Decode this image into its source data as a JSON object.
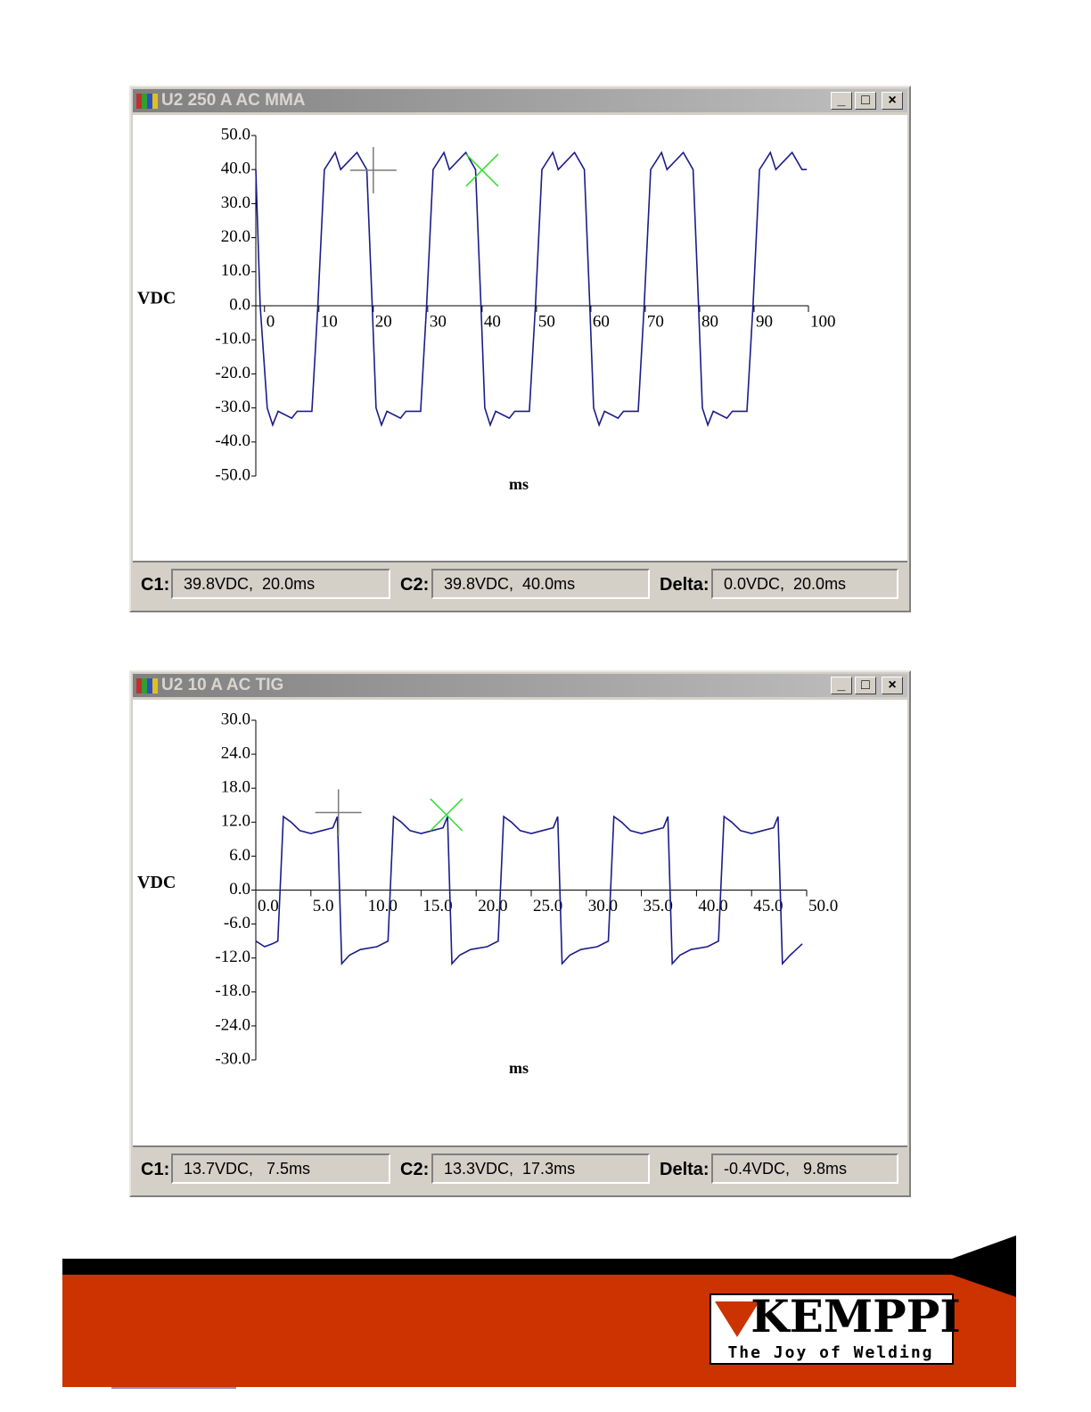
{
  "windows": [
    {
      "title": "U2 250 A AC MMA",
      "status": [
        {
          "label": "C1:",
          "text": "39.8VDC,  20.0ms"
        },
        {
          "label": "C2:",
          "text": "39.8VDC,  40.0ms"
        },
        {
          "label": "Delta:",
          "text": "0.0VDC,  20.0ms"
        }
      ]
    },
    {
      "title": "U2 10 A AC TIG",
      "status": [
        {
          "label": "C1:",
          "text": "13.7VDC,   7.5ms"
        },
        {
          "label": "C2:",
          "text": "13.3VDC,  17.3ms"
        },
        {
          "label": "Delta:",
          "text": "-0.4VDC,   9.8ms"
        }
      ]
    }
  ],
  "chart_data": [
    {
      "type": "line",
      "ylabel": "VDC",
      "xlabel": "ms",
      "color": "#1c1c8a",
      "xlim": [
        -1.6,
        100
      ],
      "xticks": [
        0,
        10,
        20,
        30,
        40,
        50,
        60,
        70,
        80,
        90,
        100
      ],
      "ylim": [
        -50,
        50
      ],
      "yticks": [
        {
          "value": 50,
          "label": "50.0"
        },
        {
          "value": 40,
          "label": "40.0"
        },
        {
          "value": 30,
          "label": "30.0"
        },
        {
          "value": 20,
          "label": "20.0"
        },
        {
          "value": 10,
          "label": "10.0"
        },
        {
          "value": 0,
          "label": "0.0"
        },
        {
          "value": -10,
          "label": "-10.0"
        },
        {
          "value": -20,
          "label": "-20.0"
        },
        {
          "value": -30,
          "label": "-30.0"
        },
        {
          "value": -40,
          "label": "-40.0"
        },
        {
          "value": -50,
          "label": "-50.0"
        }
      ],
      "x": [
        -1.6,
        -0.8,
        0.5,
        1.5,
        2.5,
        5,
        6,
        8.7,
        9.8,
        11,
        13,
        14,
        17,
        18.8,
        19.8,
        20.5,
        21.5,
        22.5,
        25,
        26,
        28.7,
        29.8,
        31,
        33,
        34,
        37,
        38.8,
        39.8,
        40.5,
        41.5,
        42.5,
        45,
        46,
        48.7,
        49.8,
        51,
        53,
        54,
        57,
        58.8,
        59.8,
        60.5,
        61.5,
        62.5,
        65,
        66,
        68.7,
        69.8,
        71,
        73,
        74,
        77,
        78.8,
        79.8,
        80.5,
        81.5,
        82.5,
        85,
        86,
        88.7,
        89.8,
        91,
        93,
        94,
        97,
        98.8,
        99.7
      ],
      "values": [
        40,
        0,
        -30,
        -35,
        -31,
        -33,
        -31,
        -31,
        0,
        40,
        45,
        40,
        45,
        40,
        0,
        -30,
        -35,
        -31,
        -33,
        -31,
        -31,
        0,
        40,
        45,
        40,
        45,
        40,
        0,
        -30,
        -35,
        -31,
        -33,
        -31,
        -31,
        0,
        40,
        45,
        40,
        45,
        40,
        0,
        -30,
        -35,
        -31,
        -33,
        -31,
        -31,
        0,
        40,
        45,
        40,
        45,
        40,
        0,
        -30,
        -35,
        -31,
        -33,
        -31,
        -31,
        0,
        40,
        45,
        40,
        45,
        40,
        40
      ],
      "cursors": [
        {
          "x": 20,
          "y": 39.8,
          "shape": "plus",
          "color": "#7a7a7a"
        },
        {
          "x": 40,
          "y": 39.8,
          "shape": "cross",
          "color": "#33dd33"
        }
      ]
    },
    {
      "type": "line",
      "ylabel": "VDC",
      "xlabel": "ms",
      "color": "#1c1c8a",
      "xlim": [
        0,
        50
      ],
      "xticks": [
        {
          "value": 0,
          "label": "0.0"
        },
        {
          "value": 5,
          "label": "5.0"
        },
        {
          "value": 10,
          "label": "10.0"
        },
        {
          "value": 15,
          "label": "15.0"
        },
        {
          "value": 20,
          "label": "20.0"
        },
        {
          "value": 25,
          "label": "25.0"
        },
        {
          "value": 30,
          "label": "30.0"
        },
        {
          "value": 35,
          "label": "35.0"
        },
        {
          "value": 40,
          "label": "40.0"
        },
        {
          "value": 45,
          "label": "45.0"
        },
        {
          "value": 50,
          "label": "50.0"
        }
      ],
      "ylim": [
        -30,
        30
      ],
      "yticks": [
        {
          "value": 30,
          "label": "30.0"
        },
        {
          "value": 24,
          "label": "24.0"
        },
        {
          "value": 18,
          "label": "18.0"
        },
        {
          "value": 12,
          "label": "12.0"
        },
        {
          "value": 6,
          "label": "6.0"
        },
        {
          "value": 0,
          "label": "0.0"
        },
        {
          "value": -6,
          "label": "-6.0"
        },
        {
          "value": -12,
          "label": "-12.0"
        },
        {
          "value": -18,
          "label": "-18.0"
        },
        {
          "value": -24,
          "label": "-24.0"
        },
        {
          "value": -30,
          "label": "-30.0"
        }
      ],
      "x": [
        0,
        0.8,
        1.5,
        2,
        2.5,
        3.2,
        4,
        5,
        6,
        7,
        7.4,
        7.8,
        8.5,
        9.5,
        11,
        12,
        12.5,
        13.2,
        14,
        15,
        16,
        17,
        17.4,
        17.8,
        18.5,
        19.5,
        21,
        22,
        22.5,
        23.2,
        24,
        25,
        26,
        27,
        27.4,
        27.8,
        28.5,
        29.5,
        31,
        32,
        32.5,
        33.2,
        34,
        35,
        36,
        37,
        37.4,
        37.8,
        38.5,
        39.5,
        41,
        42,
        42.5,
        43.2,
        44,
        45,
        46,
        47,
        47.4,
        47.8,
        48.5,
        49.6
      ],
      "values": [
        -9,
        -10,
        -9.5,
        -9,
        13,
        12,
        10.5,
        10,
        10.5,
        11,
        13,
        -13,
        -11.5,
        -10.5,
        -10,
        -9,
        13,
        12,
        10.5,
        10,
        10.5,
        11,
        13,
        -13,
        -11.5,
        -10.5,
        -10,
        -9,
        13,
        12,
        10.5,
        10,
        10.5,
        11,
        13,
        -13,
        -11.5,
        -10.5,
        -10,
        -9,
        13,
        12,
        10.5,
        10,
        10.5,
        11,
        13,
        -13,
        -11.5,
        -10.5,
        -10,
        -9,
        13,
        12,
        10.5,
        10,
        10.5,
        11,
        13,
        -13,
        -11.5,
        -9.5
      ],
      "cursors": [
        {
          "x": 7.5,
          "y": 13.7,
          "shape": "plus",
          "color": "#7a7a7a"
        },
        {
          "x": 17.3,
          "y": 13.3,
          "shape": "cross",
          "color": "#33dd33"
        }
      ]
    }
  ],
  "footer": {
    "brand": "KEMPPI",
    "tagline": "The Joy of Welding"
  }
}
